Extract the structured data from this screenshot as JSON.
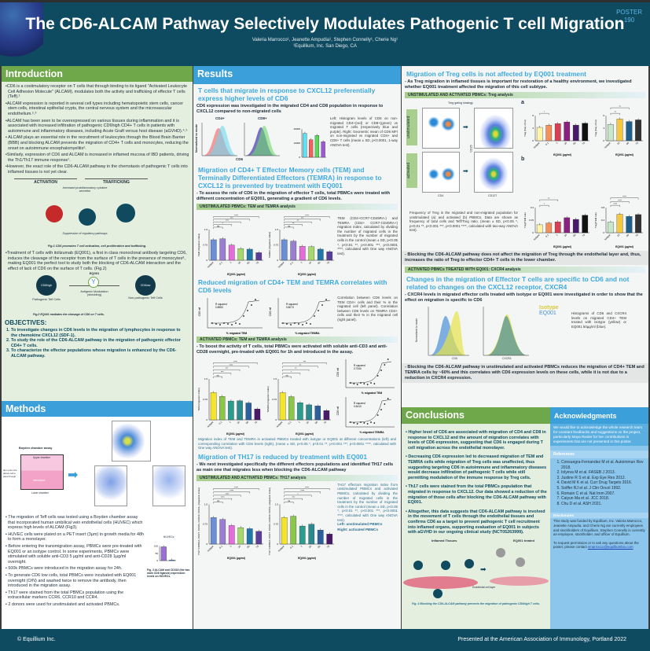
{
  "header": {
    "title": "The CD6-ALCAM Pathway Selectively Modulates Pathogenic T cell Migration",
    "authors": "Valeria Marrocco¹, Jeanette Ampudia¹, Stephen Connelly¹, Cherie Ng¹",
    "affiliation": "¹Equillium, Inc. San Diego, CA",
    "poster_label": "POSTER",
    "poster_number": "190"
  },
  "intro": {
    "heading": "Introduction",
    "bullets": [
      "•CD6 is a costimulatory receptor on T cells that through binding to its ligand \"Activated Leukocyte Cell Adhesion Molecule\" (ALCAM), modulates both the activity and trafficking of effector T cells (Teff).¹",
      "•ALCAM expression is reported in several cell types including hematopoietic stem cells, cancer stem cells, intestinal epithelial crypts, the central nervous system and the microvascular endothelium.²˒³",
      "•ALCAM has been seen to be overexpressed on various tissues during inflammation and it is associated with increased infiltration of pathogenic CD6high CD4+ T cells in patients with autoimmune and inflammatory diseases, including Acute Graft versus host disease (aGVHD).⁴˒⁵",
      "• ALCAM plays an essential role in the recruitment of leukocytes through the Blood Brain Barrier (BBB) and blocking ALCAM prevents the migration of CD4+ T cells and monocytes, reducing the onset on autoimmune encephalomyelitis⁶.",
      "•Similarly, expression of CD6 and ALCAM is increased in inflamed mucosa of IBD patients, driving the Th1/Th17 immune response⁷.",
      "•However, the exact role of the CD6-ALCAM pathway in the chemotaxis of pathogenic T cells into inflamed tissues is not yet clear."
    ],
    "fig1": {
      "activation": "ACTIVATION",
      "trafficking": "TRAFFICKING",
      "note": "Increased proinflammatory cytokine secretion",
      "suppression": "Suppression of regulatory pathways",
      "caption": "Fig.1 CD6 promotes T cell activation, cell proliferation and trafficking."
    },
    "treatment": "•Treatment of T cells with itolizumab (EQ001), a first in class monoclonal antibody targeting CD6, induces the cleavage of the receptor from the surface of T cells in the presence of monocytes⁸, making EQ001 the perfect tool to study both the blocking of CD6-ALCAM interaction and the effect of lack of CD6 on the surface of T cells. (Fig.2)",
    "fig2": {
      "left_cell": "CD6high",
      "left_label": "Pathogenic Teff Cells",
      "drug": "EQ001",
      "middle": "Antigenic Modulation (shedding)",
      "right_cell": "CD6low",
      "right_label": "Non-pathogenic Teff Cells",
      "caption": "Fig.2 EQ001 mediates the cleavage of CD6 on T cells."
    },
    "objectives_heading": "OBJECTIVES:",
    "objectives": [
      "To investigate changes in CD6 levels in the migration of lymphocytes in response to the chemokine CXCL12 (SDF-1).",
      "To study the role of the CD6-ALCAM pathway in the migration of pathogenic effector CD4+ T cells.",
      "To characterize the effector populations whose migration is enhanced by the CD6-ALCAM pathway."
    ]
  },
  "methods": {
    "heading": "Methods",
    "boyden_title": "Boyden chamber assay",
    "upper": "Upper chamber",
    "lower": "Lower chamber",
    "chemokine": "chemokine",
    "pore": "3µm pore size allows cell to pass through",
    "bullets": [
      "• The migration of Teff cells was tested using a Boyden chamber assay that incorporated human umbilical vein endothelial cells (HUVEC) which express high levels of ALCAM (Fig3).",
      "• HUVEC cells were plated on a PET insert (3µm) in growth media for 48h to form a monolayer.",
      "• Before entering the transmigration assay, PBMCs were pre-treated with EQ001 or an isotype control. In some experiments, PBMCs were stimulated with soluble anti-CD3 5 µg/ml and anti-CD28 1µg/ml overnight.",
      "• 500k PBMCs were introduced in the migration assay for 24h.",
      "• To generate CD6 low cells, total PBMCs were incubated with EQ001 overnight (O/N) and washed twice to remove the antibody, then introduced in the migration assay.",
      "• Th17 were stained from the total PBMCs population using the extracellular markers CCR6, CCR10 and CCR4.",
      "• 2 donors were used for unstimulated and activated PBMCs."
    ],
    "fig3_title": "HUVECs",
    "fig3_caption": "Fig. 3 ALCAM and CD318 (the two main CD6 ligands) expression levels on HUVECs.",
    "fig3_values": [
      95,
      4
    ]
  },
  "results": {
    "heading": "Results",
    "s1_title": "T cells that migrate in response to CXCL12 preferentially express higher levels of CD6",
    "s1_text": "CD6 expression was investigated in the migrated CD4 and CD8 population in response to CXCL12 compared to non-migrated cells",
    "s1_hist": {
      "cd4": "CD4+",
      "cd8": "CD8+",
      "xlabel": "CD6",
      "ylabel": "Normalized to mode"
    },
    "s1_caption": "Left: Histogram levels of CD6 on non-migrated CD4+(red) or CD8+(green) vs migrated T cells (respectively blue and purple). Right: Geometric mean of CD6 MFI on non-migrated vs migrated CD4+ and CD8+ T cells (mean ± SD, p<0.0001, 1-way ANOVA test).",
    "s2_title": "Migration of CD4+ T Effector Memory cells (TEM) and Terminally Differentiated Effectors (TEMRA) in response to CXCL12 is prevented by treatment with EQ001",
    "s2_text": "- To assess the role of CD6 in the migration of effector T cells, total PBMCs were treated with different concentration of EQ001, generating a gradient of CD6 levels.",
    "strip_unstim": "UNSTIMULATED PBMCs: TEM and TEMRA analysis",
    "s2_caption": "TEM (CD4+CCR7-CD45RA-) and TEMRA (CD4+ CCR7-CD45RA+) migration index, calculated by dividing the number of migrated cells in the treatment by the number of migrated cells in the control (mean ± SD, p<0.05 *, p<0.01 **, p<0.001 ***, p<0.0001 ****, calculated with One way ANOVA test).",
    "s3_title": "Reduced migration of CD4+ TEM and TEMRA correlates with CD6 levels",
    "corr_left": {
      "r2_label": "R squared",
      "r2": "0.8983",
      "xlabel": "% migrated TEM",
      "ylabel": "CD6 mfi"
    },
    "corr_right": {
      "r2_label": "R squared",
      "r2": "0.8073",
      "xlabel": "% migrated TEMRA",
      "ylabel": "CD6 mfi"
    },
    "s3_caption": "Correlation between CD6 levels on TEM CD4+ cells and their % in the migrated cell (left panel). Correlation between CD6 levels on TEMRA CD4+ cells and their % in the migrated cell (right panel).",
    "strip_act": "ACTIVATED PBMCs: TEM and TEMRA analysis",
    "s4_text": "- To boost the activity of T cells, total PBMCs were activated with soluble anti-CD3 and anti-CD28 overnight, pre-treated with EQ001 for 1h and introduced in the assay.",
    "corr_act_top": {
      "r2_label": "R squared",
      "r2": "0.7340",
      "xlabel": "% migrated TEM",
      "ylabel": "CD6 mfi"
    },
    "corr_act_bottom": {
      "r2_label": "R squared",
      "r2": "0.6410",
      "xlabel": "% migrated TEMRA",
      "ylabel": "CD6 mfi"
    },
    "s4_caption": "Migration index of TEM and TEMRA in activated PBMCs treated with isotype or EQ001 at different concentrations (left) and corresponding correlation with CD6 levels (right), (mean ± SD, p<0.05 *, p<0.01 **, p<0.001 ***, p<0.0001 ****, calculated with One way ANOVA test).",
    "s5_title": "Migration of TH17 is reduced by treatment with EQ001",
    "s5_text": "- We next investigated specifically the different effectors populations and identified TH17 cells as main one that migrates less when blocking the CD6-ALCAM pathway",
    "strip_th17": "UNSTIMULATED AND ACTIVATED PBMCs: TH17 analysis",
    "s5_caption": "TH17 effectors migration index from unstimulated PBMCs and activated PBMCs, calculated by dividing the number of migrated cells in the treatment by the number of migrated cells in the control (mean ± SD, p<0.05 *, p<0.01 **, p<0.001 ***, p<0.0001 ****, calculated with One way ANOVA test).",
    "s5_left": "Left: unstimulated PBMCs",
    "s5_right": "Right: activated PBMCs"
  },
  "treg": {
    "title": "Migration of Treg cells is not affected by EQ001 treatment",
    "text": "- As Treg migration in inflamed tissues is important for restoration of a healthy environment, we investigated whether EQ001 treatment affected the migration of this cell subtype.",
    "strip": "UNSTIMULATED AND ACTIVATED PBMCs: Treg analysis",
    "gating": "Treg gating strategy",
    "unstim": "unstimulated",
    "act": "activated",
    "axis_cd4": "CD4",
    "axis_cd25": "CD25",
    "axis_cd127": "CD127",
    "panel_a": "a",
    "panel_b": "b",
    "caption": "Frequency of Treg in the migrated and non-migrated population for unstimulated (a) and activated (b) PBMCs. Data are shown as frequency of total cells and Teff/Treg ratio. (mean ± SD, p<0.05 *, p<0.01 **, p<0.001 ***, p<0.0001 ****, calculated with two-way ANOVA test).",
    "conclusion": "- Blocking the CD6-ALCAM pathway does not affect the migration of Treg through the endothelial layer and, thus, increases the ratio of Treg to effector CD4+ T cells in the lower chamber."
  },
  "cxcr4": {
    "strip": "ACTIVATED PBMCs TREATED WITH EQ001: CXCR4 analysis",
    "title": "Changes in the migration of Effector T cells are specific to CD6 and not related to changes on the CXCL12 receptor, CXCR4",
    "text": "- CXCR4 levels in migrated effector cells treated with isotype or EQ001 were investigated in order to show that the effect on migration is specific to CD6",
    "legend_isotype": "Isotype",
    "legend_eq": "EQ001",
    "x1": "CD6",
    "x2": "CXCR4",
    "ylabel": "Normalized to mode",
    "caption": "Histograms of CD6 and CXCR4 levels on migrated CD4+ TEM treated with isotype (yellow) or EQ001 50µg/ml (blue).",
    "conclusion": "- Blocking the CD6-ALCAM pathway in unstimulated and activated PBMCs reduces the migration of CD4+ TEM and TEMRA cells by ~60% and this correlates with CD6 expression levels on these cells, while it is not due to a reduction in CXCR4 expression."
  },
  "conclusions": {
    "heading": "Conclusions",
    "bullets": [
      "• Higher level of CD6 are associated with migration of CD4 and CD8 in response to CXCL12 and the amount of migration correlates with levels of CD6 expression, suggesting that CD6 is engaged during T cell migration across the endothelial monolayer.",
      "• Decreasing CD6 expression led to decreased migration of TEM and TEMRA cells while migration of Treg cells was unaffected, thus suggesting targeting CD6 in autoimmune and inflammatory diseases would decrease infiltration of pathogenic T cells while still permitting modulation of the immune response by Treg cells.",
      "• Th17 cells were stained from the total PBMCs population that migrated in response to CXCL12. Our data showed a reduction of the migration of those cells after blocking the CD6-ALCAM pathway with EQ001.",
      "• Altogether, this data suggests that CD6-ALCAM pathway is involved in the movement of T cells through the endothelial tissues and confirms CD6 as a target to prevent pathogenic T cell recruitment into inflamed organs, supporting evaluation of EQ001 in subjects with aGVHD in our ongoing clinical study (NCT05263999)."
    ],
    "fig4_left": "Inflamed Tissues",
    "fig4_right": "EQ001 treated",
    "fig4_layer": "Endothelial cell layer",
    "fig4_caption": "Fig. 4 Blocking the CD6-ALCAM pathway prevents the migration of pathogenic CD6high T cells."
  },
  "ack": {
    "heading": "Acknowledgments",
    "text": "We would like to acknowledge the whole research team for constant feedbacks and suggestions on the project, particularly Maya Rieder for her contributions in experiments that are not presented in this poster.",
    "refs_heading": "References",
    "refs": [
      "Consuegra-Fernandez M et al. Autoimmun Rev 2018.",
      "Iolyeva M et al. FASEB J 2013.",
      "Justine R S et al. Exp Eye Res 2012.",
      "David M K et al. Curr Drug Targets 2016.",
      "Soiffer RJ et al. J Clin Oncol 1992.",
      "Romain C et al. Nat Imm 2007.",
      "Caiyun Ma et al. JCC 2018.",
      "Chu D et al. ASH 2021."
    ],
    "disc_heading": "Disclosures",
    "disc": "This study was funded by Equillium, Inc. Valeria Marrocco, Jeanette Ampudia, and Cherie Ng are currently employees and stockholders of Equillium. Stephen Connelly is currently an employee, stockholder, and officer of Equillium.",
    "contact": "To request permission or to ask any questions about the poster, please contact",
    "email": "vmarrocco@equilliumbio.com"
  },
  "footer": {
    "copyright": "© Equillium Inc.",
    "presented": "Presented at the American Association of Immunology, Portland 2022"
  },
  "figures": {
    "cd6_mfi": {
      "ymax": 20000,
      "values": [
        17000,
        12500,
        15500,
        11000
      ],
      "colors": [
        "#5fe0f5",
        "#f26060",
        "#5ad85a",
        "#9b59d6"
      ]
    },
    "tem_unstim": {
      "ylabel": "TEM (migration index)",
      "xlabel": "EQ001 (µg/ml)",
      "ymax": 1.5,
      "categories": [
        "isotype",
        "0.1",
        "1",
        "10",
        "50",
        "75"
      ],
      "values": [
        1.0,
        1.05,
        0.74,
        0.57,
        0.54,
        0.37
      ],
      "sig": [
        "ns",
        "*",
        "***",
        "***",
        "****"
      ],
      "colors": [
        "#6b8fd6",
        "#9a7fd0",
        "#e36ed9",
        "#a6d96a",
        "#1f78a8",
        "#5a3f9a"
      ]
    },
    "temra_unstim": {
      "ylabel": "TEMRA (migration index)",
      "xlabel": "EQ001 (µg/ml)",
      "ymax": 1.5,
      "categories": [
        "isotype",
        "0.1",
        "1",
        "10",
        "50",
        "75"
      ],
      "values": [
        1.0,
        0.93,
        0.68,
        0.66,
        0.54,
        0.42
      ],
      "sig": [
        "ns",
        "**",
        "**",
        "***",
        "****"
      ],
      "colors": [
        "#6b8fd6",
        "#9a7fd0",
        "#e36ed9",
        "#a6d96a",
        "#1f78a8",
        "#5a3f9a"
      ]
    },
    "tem_act": {
      "ylabel": "TEM (migration index)",
      "xlabel": "EQ001 (µg/ml)",
      "ymax": 1.5,
      "categories": [
        "isotype",
        "0.1",
        "1",
        "10",
        "50",
        "75"
      ],
      "values": [
        1.0,
        0.86,
        0.69,
        0.7,
        0.62,
        0.4
      ],
      "sig": [
        "ns",
        "***",
        "***",
        "****",
        "****"
      ],
      "colors": [
        "#f5e52a",
        "#8cc64a",
        "#2a9d8f",
        "#2a8a8f",
        "#2c5f9e",
        "#4a1a6a"
      ]
    },
    "temra_act": {
      "ylabel": "TEMRA (migration index)",
      "xlabel": "EQ001 (µg/ml)",
      "ymax": 1.5,
      "categories": [
        "isotype",
        "0.1",
        "1",
        "10",
        "50",
        "75"
      ],
      "values": [
        1.0,
        0.85,
        0.63,
        0.55,
        0.51,
        0.34
      ],
      "sig": [
        "ns",
        "*",
        "**",
        "**",
        "***"
      ],
      "colors": [
        "#f5e52a",
        "#8cc64a",
        "#2a9d8f",
        "#2a8a8f",
        "#2c5f9e",
        "#4a1a6a"
      ]
    },
    "th17_unstim": {
      "ylabel": "Th17 CD45RA- CCR7- CCR6+ CCR10- CCR4+ (migration index)",
      "xlabel": "EQ001 (µg/ml)",
      "ymax": 1.5,
      "categories": [
        "isotype",
        "0.1",
        "1",
        "10",
        "50",
        "75"
      ],
      "values": [
        1.0,
        0.93,
        0.7,
        0.62,
        0.58,
        0.48
      ],
      "sig": [
        "ns",
        "****",
        "****",
        "****",
        "****"
      ],
      "colors": [
        "#6b8fd6",
        "#9a7fd0",
        "#e36ed9",
        "#a6d96a",
        "#1f78a8",
        "#5a3f9a"
      ]
    },
    "th17_act": {
      "ylabel": "Th17 CD45RA- CCR7- CCR6+ CCR10- CCR4+ (migration index)",
      "xlabel": "EQ001 (µg/ml)",
      "ymax": 1.5,
      "categories": [
        "isotype",
        "0.1",
        "1",
        "10",
        "50",
        "75"
      ],
      "values": [
        1.0,
        1.05,
        0.68,
        0.75,
        0.53,
        0.38
      ],
      "sig": [
        "ns",
        "***",
        "*",
        "****",
        "****"
      ],
      "colors": [
        "#f5e52a",
        "#8cc64a",
        "#2a9d8f",
        "#2a8a8f",
        "#2c5f9e",
        "#4a1a6a"
      ]
    },
    "treg_a_unstim": {
      "ylabel": "Treg (freq of tot)",
      "xlabel": "EQ001 (µg/ml)",
      "ymax": 6,
      "categories": [
        "isotype",
        "0.1",
        "1",
        "10",
        "50",
        "75"
      ],
      "values": [
        3.2,
        3.7,
        4.1,
        4.5,
        3.75,
        4.2
      ],
      "sig": [
        "*"
      ],
      "colors": [
        "#fff4a8",
        "#f4915a",
        "#d94055",
        "#8a2080",
        "#4a1a6a",
        "#111111"
      ]
    },
    "treg_a_act": {
      "ylabel": "Treg (freq of tot)",
      "xlabel": "EQ001 (µg/ml)",
      "ymax": 6,
      "categories": [
        "isotype",
        "10",
        "50",
        "75"
      ],
      "values": [
        3.9,
        5.2,
        4.6,
        5.0
      ],
      "sig": [
        "**",
        "**"
      ],
      "colors": [
        "#c8e6c9",
        "#f5c842",
        "#1f5f8b",
        "#333333"
      ]
    },
    "treg_b_unstim": {
      "ylabel": "Treg/TEM ratio",
      "xlabel": "EQ001 (µg/ml)",
      "ymax": 0.3,
      "categories": [
        "isotype",
        "0.1",
        "1",
        "10",
        "50",
        "75"
      ],
      "values": [
        0.095,
        0.115,
        0.13,
        0.18,
        0.16,
        0.21
      ],
      "sig": [
        "*",
        "**"
      ],
      "colors": [
        "#fff4a8",
        "#f4915a",
        "#d94055",
        "#8a2080",
        "#4a1a6a",
        "#111111"
      ]
    },
    "treg_b_act": {
      "ylabel": "Treg/TEM ratio",
      "xlabel": "EQ001 (µg/ml)",
      "ymax": 0.8,
      "categories": [
        "isotype",
        "10",
        "50",
        "75"
      ],
      "values": [
        0.34,
        0.59,
        0.52,
        0.58
      ],
      "sig": [
        "****",
        "****",
        "****"
      ],
      "colors": [
        "#c8e6c9",
        "#f5c842",
        "#1f5f8b",
        "#333333"
      ]
    }
  },
  "colors": {
    "header": "#0e4a60",
    "green": "#6fa84a",
    "blue": "#3b9fd9",
    "subtitle": "#3ea9e0"
  }
}
